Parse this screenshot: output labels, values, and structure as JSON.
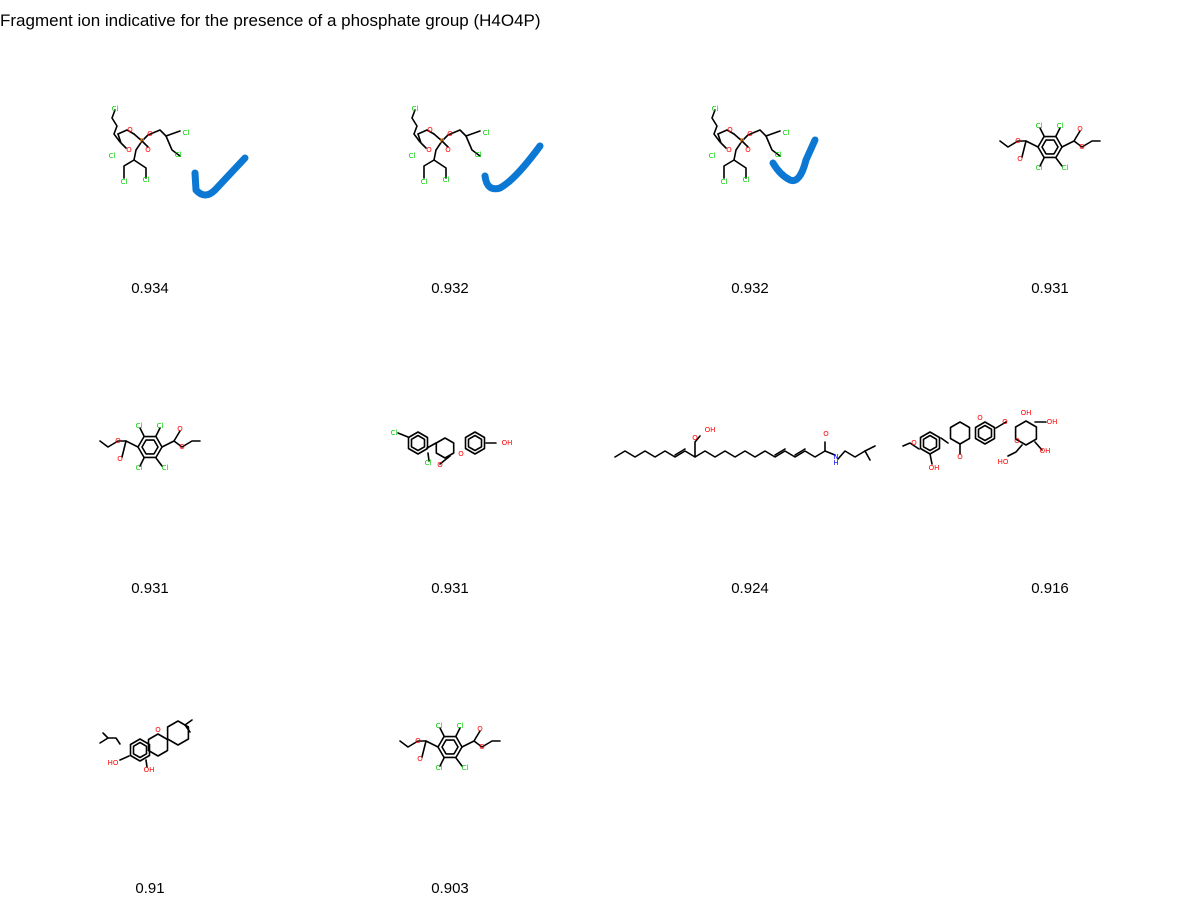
{
  "title": "Fragment ion indicative for the presence of a phosphate group (H4O4P)",
  "colors": {
    "check": "#0b78d3",
    "oxygen": "#ff0000",
    "chlorine": "#00cc00",
    "phosphorus": "#ff8000",
    "nitrogen": "#0000ff",
    "bond": "#000000"
  },
  "atom_labels": {
    "cl": "Cl",
    "o": "O",
    "p": "P",
    "oh": "OH",
    "ho": "HO",
    "n": "N",
    "h": "H"
  },
  "molecules": [
    {
      "score": "0.934",
      "structure": "tris-chloropropyl-phosphate",
      "checked": true
    },
    {
      "score": "0.932",
      "structure": "tris-chloropropyl-phosphate",
      "checked": true
    },
    {
      "score": "0.932",
      "structure": "tris-chloropropyl-phosphate",
      "checked": true
    },
    {
      "score": "0.931",
      "structure": "tetrachloro-dimethyl-phthalate",
      "checked": false
    },
    {
      "score": "0.931",
      "structure": "tetrachloro-dimethyl-phthalate",
      "checked": false
    },
    {
      "score": "0.931",
      "structure": "dichlorophenyl-hydroxycoumarin",
      "checked": false
    },
    {
      "score": "0.924",
      "structure": "hydroperoxy-fatty-isobutylamide",
      "checked": false
    },
    {
      "score": "0.916",
      "structure": "isoflavone-glucoside",
      "checked": false
    },
    {
      "score": "0.91",
      "structure": "epoxy-abietane-diol",
      "checked": false
    },
    {
      "score": "0.903",
      "structure": "tetrachloro-dimethyl-phthalate",
      "checked": false
    }
  ]
}
